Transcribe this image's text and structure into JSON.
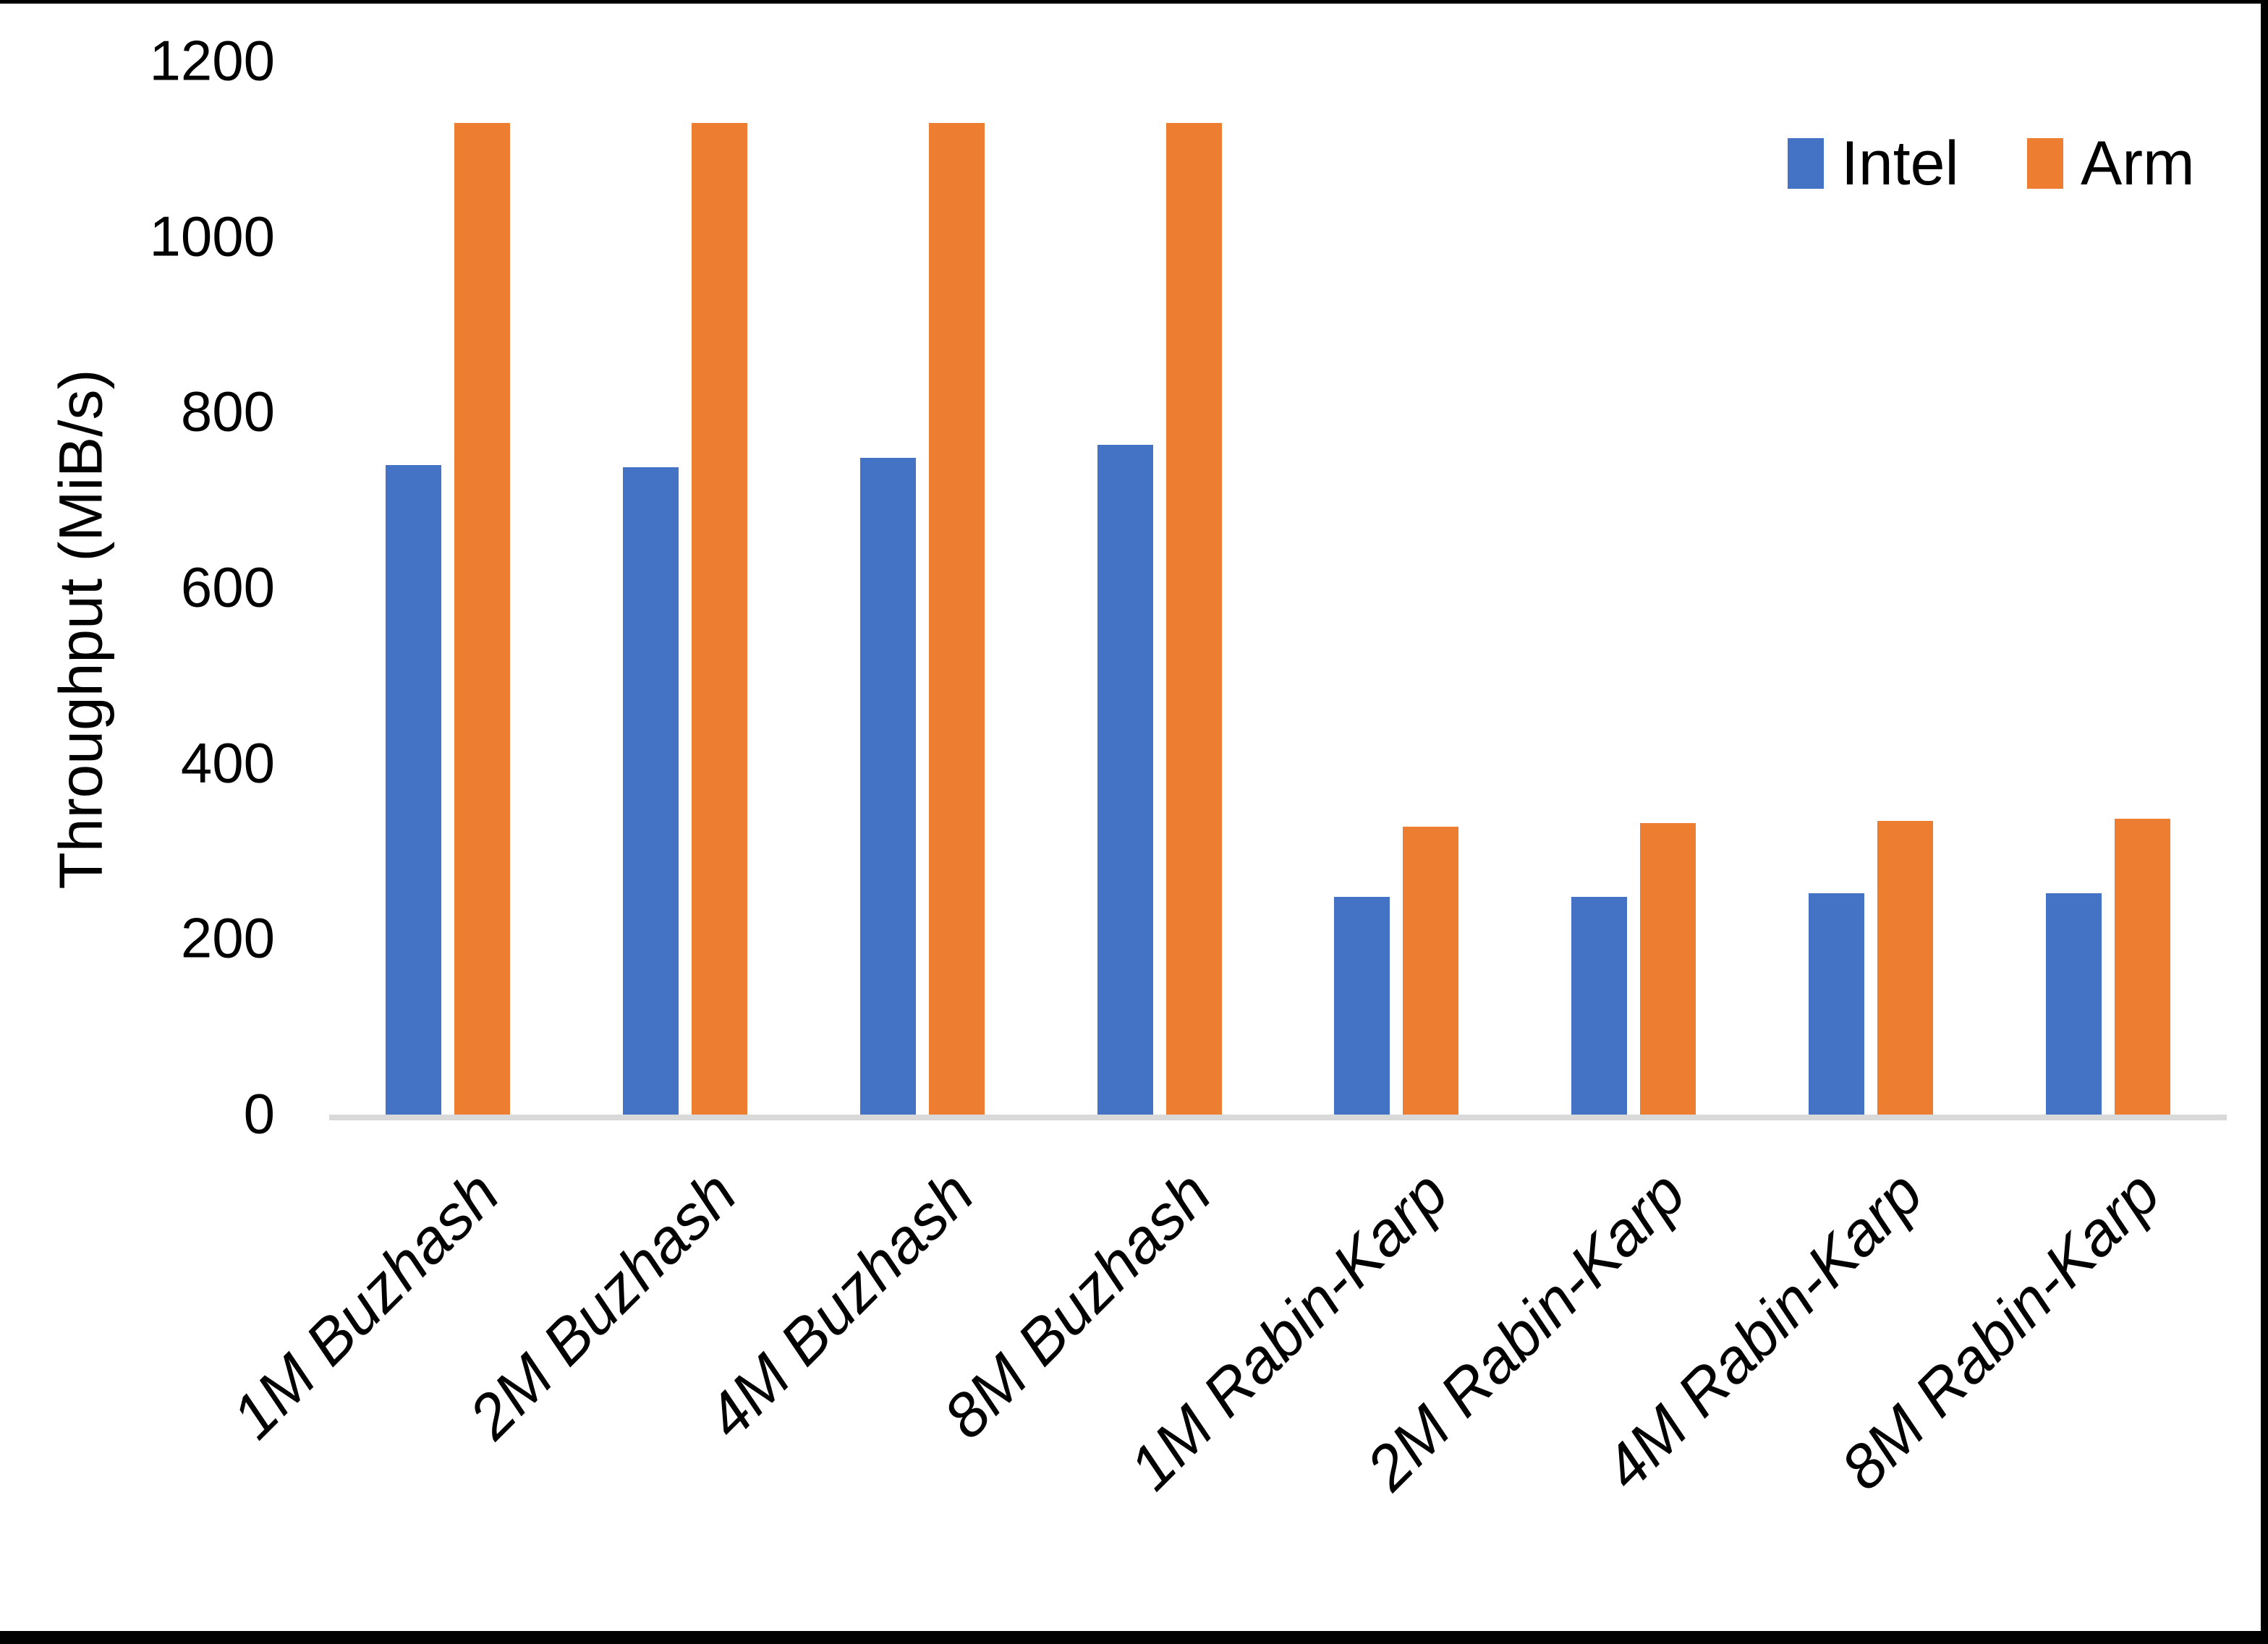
{
  "colors": {
    "intel": "#4472C4",
    "arm": "#ED7D31",
    "axis_line": "#D9D9D9",
    "text": "#000000",
    "frame_edge": "#000000",
    "background": "#FFFFFF"
  },
  "chart_data": {
    "type": "bar",
    "title": "",
    "xlabel": "",
    "ylabel": "Throughput (MiB/s)",
    "ylim": [
      0,
      1200
    ],
    "yticks": [
      0,
      200,
      400,
      600,
      800,
      1000,
      1200
    ],
    "grid": false,
    "legend_position": "top-right",
    "categories": [
      "1M Buzhash",
      "2M Buzhash",
      "4M Buzhash",
      "8M Buzhash",
      "1M Rabin-Karp",
      "2M Rabin-Karp",
      "4M Rabin-Karp",
      "8M Rabin-Karp"
    ],
    "series": [
      {
        "name": "Intel",
        "color": "#4472C4",
        "values": [
          740,
          738,
          748,
          763,
          248,
          248,
          252,
          252
        ]
      },
      {
        "name": "Arm",
        "color": "#ED7D31",
        "values": [
          1130,
          1130,
          1130,
          1130,
          328,
          332,
          335,
          337
        ]
      }
    ]
  }
}
